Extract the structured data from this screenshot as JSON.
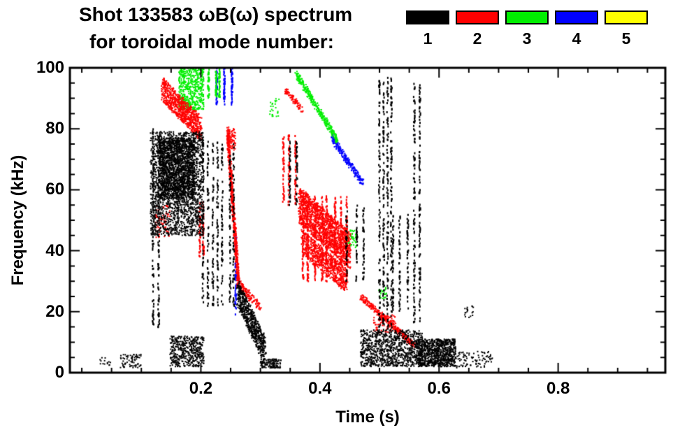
{
  "chart_data": {
    "type": "scatter",
    "title": "Shot 133583 ωB(ω) spectrum",
    "subtitle": "for toroidal mode number:",
    "xlabel": "Time (s)",
    "ylabel": "Frequency (kHz)",
    "xlim": [
      -0.02,
      0.98
    ],
    "ylim": [
      0,
      100
    ],
    "xticks": {
      "major": [
        0.2,
        0.4,
        0.6,
        0.8
      ],
      "labels": [
        "0.2",
        "0.4",
        "0.6",
        "0.8"
      ],
      "minor_step": 0.05
    },
    "yticks": {
      "major": [
        0,
        20,
        40,
        60,
        80,
        100
      ],
      "labels": [
        "0",
        "20",
        "40",
        "60",
        "80",
        "100"
      ],
      "minor_step": 5
    },
    "grid": false,
    "legend_position": "top-right",
    "series": [
      {
        "name": "1",
        "color": "#000000",
        "clusters": [
          {
            "kind": "blob",
            "t": [
              0.115,
              0.205
            ],
            "f": [
              45,
              79
            ],
            "n": 2000
          },
          {
            "kind": "blob",
            "t": [
              0.13,
              0.19
            ],
            "f": [
              57,
              77
            ],
            "n": 1400
          },
          {
            "kind": "streaks",
            "t": [
              0.116,
              0.132
            ],
            "f": [
              15,
              80
            ],
            "lines": 2,
            "n": 170
          },
          {
            "kind": "streaks",
            "t": [
              0.198,
              0.26
            ],
            "f": [
              22,
              76
            ],
            "lines": 7,
            "n": 430
          },
          {
            "kind": "blob",
            "t": [
              0.148,
              0.205
            ],
            "f": [
              2,
              12
            ],
            "n": 450
          },
          {
            "kind": "blob",
            "t": [
              0.065,
              0.1
            ],
            "f": [
              1.5,
              6
            ],
            "n": 70
          },
          {
            "kind": "blob",
            "t": [
              0.03,
              0.05
            ],
            "f": [
              2,
              5
            ],
            "n": 14
          },
          {
            "kind": "chirp",
            "t": [
              0.262,
              0.308
            ],
            "f": [
              26,
              7
            ],
            "w": 9,
            "n": 650
          },
          {
            "kind": "blob",
            "t": [
              0.3,
              0.335
            ],
            "f": [
              1.5,
              4.5
            ],
            "n": 130
          },
          {
            "kind": "streaks",
            "t": [
              0.34,
              0.37
            ],
            "f": [
              55,
              76
            ],
            "lines": 2,
            "n": 80
          },
          {
            "kind": "streaks",
            "t": [
              0.44,
              0.478
            ],
            "f": [
              30,
              55
            ],
            "lines": 3,
            "n": 110
          },
          {
            "kind": "streaks",
            "t": [
              0.495,
              0.522
            ],
            "f": [
              14,
              97
            ],
            "lines": 4,
            "n": 400
          },
          {
            "kind": "streaks",
            "t": [
              0.52,
              0.55
            ],
            "f": [
              20,
              52
            ],
            "lines": 3,
            "n": 140
          },
          {
            "kind": "streaks",
            "t": [
              0.553,
              0.57
            ],
            "f": [
              16,
              95
            ],
            "lines": 2,
            "n": 210
          },
          {
            "kind": "blob",
            "t": [
              0.468,
              0.572
            ],
            "f": [
              2,
              14
            ],
            "n": 950
          },
          {
            "kind": "blob",
            "t": [
              0.565,
              0.628
            ],
            "f": [
              2,
              11
            ],
            "n": 850
          },
          {
            "kind": "blob",
            "t": [
              0.628,
              0.69
            ],
            "f": [
              1.5,
              7
            ],
            "n": 90
          },
          {
            "kind": "blob",
            "t": [
              0.643,
              0.658
            ],
            "f": [
              18,
              22
            ],
            "n": 18
          }
        ]
      },
      {
        "name": "2",
        "color": "#ff0000",
        "clusters": [
          {
            "kind": "chirp",
            "t": [
              0.135,
              0.2
            ],
            "f": [
              93,
              80
            ],
            "w": 8,
            "n": 800
          },
          {
            "kind": "blob",
            "t": [
              0.123,
              0.148
            ],
            "f": [
              44,
              55
            ],
            "n": 80
          },
          {
            "kind": "streaks",
            "t": [
              0.196,
              0.208
            ],
            "f": [
              38,
              56
            ],
            "lines": 2,
            "n": 80
          },
          {
            "kind": "chirp",
            "t": [
              0.245,
              0.263
            ],
            "f": [
              79,
              30
            ],
            "w": 4,
            "n": 650
          },
          {
            "kind": "blob",
            "t": [
              0.244,
              0.258
            ],
            "f": [
              73,
              80
            ],
            "n": 90
          },
          {
            "kind": "chirp",
            "t": [
              0.26,
              0.3
            ],
            "f": [
              30,
              21
            ],
            "w": 3,
            "n": 160
          },
          {
            "kind": "streaks",
            "t": [
              0.335,
              0.362
            ],
            "f": [
              55,
              78
            ],
            "lines": 3,
            "n": 130
          },
          {
            "kind": "chirp",
            "t": [
              0.365,
              0.45
            ],
            "f": [
              55,
              40
            ],
            "w": 12,
            "n": 1500
          },
          {
            "kind": "chirp",
            "t": [
              0.37,
              0.445
            ],
            "f": [
              43,
              30
            ],
            "w": 8,
            "n": 700
          },
          {
            "kind": "streaks",
            "t": [
              0.365,
              0.45
            ],
            "f": [
              30,
              58
            ],
            "lines": 8,
            "n": 450
          },
          {
            "kind": "chirp",
            "t": [
              0.34,
              0.372
            ],
            "f": [
              93,
              86
            ],
            "w": 2,
            "n": 90
          },
          {
            "kind": "chirp",
            "t": [
              0.468,
              0.558
            ],
            "f": [
              25,
              9
            ],
            "w": 2,
            "n": 330
          },
          {
            "kind": "blob",
            "t": [
              0.49,
              0.528
            ],
            "f": [
              13,
              19
            ],
            "n": 80
          }
        ]
      },
      {
        "name": "3",
        "color": "#00ee00",
        "clusters": [
          {
            "kind": "blob",
            "t": [
              0.163,
              0.205
            ],
            "f": [
              86,
              100
            ],
            "n": 550
          },
          {
            "kind": "streaks",
            "t": [
              0.208,
              0.238
            ],
            "f": [
              90,
              100
            ],
            "lines": 3,
            "n": 100
          },
          {
            "kind": "chirp",
            "t": [
              0.36,
              0.43
            ],
            "f": [
              98,
              76
            ],
            "w": 2.5,
            "n": 330
          },
          {
            "kind": "blob",
            "t": [
              0.445,
              0.462
            ],
            "f": [
              41,
              47
            ],
            "n": 45
          },
          {
            "kind": "blob",
            "t": [
              0.315,
              0.332
            ],
            "f": [
              84,
              90
            ],
            "n": 25
          },
          {
            "kind": "blob",
            "t": [
              0.498,
              0.512
            ],
            "f": [
              24,
              28
            ],
            "n": 22
          }
        ]
      },
      {
        "name": "4",
        "color": "#0000ff",
        "clusters": [
          {
            "kind": "streaks",
            "t": [
              0.22,
              0.256
            ],
            "f": [
              88,
              100
            ],
            "lines": 3,
            "n": 130
          },
          {
            "kind": "chirp",
            "t": [
              0.42,
              0.472
            ],
            "f": [
              77,
              62
            ],
            "w": 2.5,
            "n": 230
          },
          {
            "kind": "streaks",
            "t": [
              0.252,
              0.262
            ],
            "f": [
              18,
              45
            ],
            "lines": 1,
            "n": 55
          }
        ]
      },
      {
        "name": "5",
        "color": "#ffff00",
        "clusters": []
      }
    ]
  },
  "legend": {
    "items": [
      {
        "label": "1",
        "color": "#000000"
      },
      {
        "label": "2",
        "color": "#ff0000"
      },
      {
        "label": "3",
        "color": "#00ee00"
      },
      {
        "label": "4",
        "color": "#0000ff"
      },
      {
        "label": "5",
        "color": "#ffff00"
      }
    ]
  }
}
